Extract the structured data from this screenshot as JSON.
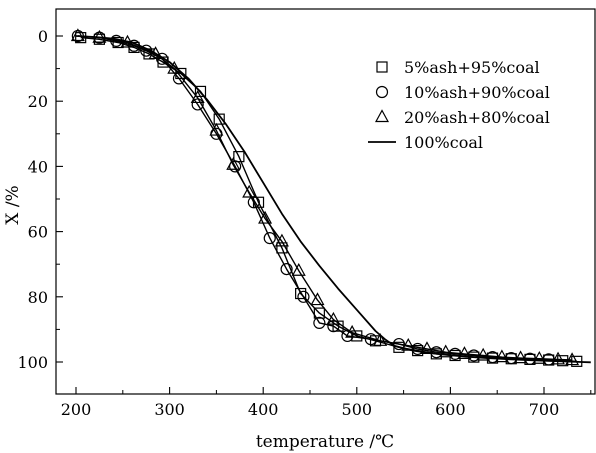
{
  "chart_data": {
    "type": "scatter",
    "xlabel": "temperature /℃",
    "ylabel": "X /%",
    "xlim": [
      190,
      765
    ],
    "ylim": [
      0,
      110
    ],
    "y_inverted": true,
    "x_ticks": [
      200,
      300,
      400,
      500,
      600,
      700
    ],
    "y_ticks": [
      0,
      20,
      40,
      60,
      80,
      100
    ],
    "legend_position": "top-right",
    "series": [
      {
        "name": "5%ash+95%coal",
        "marker": "square",
        "x": [
          205,
          225,
          245,
          262,
          278,
          293,
          312,
          333,
          353,
          374,
          395,
          420,
          440,
          460,
          480,
          500,
          520,
          545,
          565,
          585,
          605,
          625,
          645,
          665,
          685,
          705,
          720,
          735
        ],
        "y": [
          0.5,
          1,
          2,
          3.5,
          5.5,
          8,
          11.5,
          17,
          25.5,
          37,
          51,
          65,
          79,
          85,
          89,
          92,
          93.5,
          95.5,
          96.5,
          97.5,
          98,
          98.5,
          98.8,
          99,
          99.2,
          99.4,
          99.6,
          99.8
        ]
      },
      {
        "name": "10%ash+90%coal",
        "marker": "circle",
        "x": [
          202,
          225,
          243,
          262,
          275,
          292,
          310,
          330,
          350,
          370,
          390,
          407,
          425,
          443,
          460,
          475,
          490,
          515,
          545,
          565,
          585,
          605,
          625,
          645,
          665,
          685,
          705
        ],
        "y": [
          0,
          0.5,
          1.5,
          3,
          4.5,
          7,
          13,
          21,
          30,
          40,
          51,
          62,
          71.5,
          80,
          88,
          89,
          92,
          93,
          94.5,
          96,
          97,
          97.5,
          98,
          98.5,
          98.8,
          99,
          99.2
        ]
      },
      {
        "name": "20%ash+80%coal",
        "marker": "triangle",
        "x": [
          202,
          225,
          255,
          285,
          305,
          330,
          350,
          368,
          385,
          402,
          420,
          438,
          458,
          475,
          495,
          525,
          555,
          575,
          595,
          615,
          635,
          655,
          675,
          695,
          715,
          730
        ],
        "y": [
          0,
          0.5,
          2,
          5.5,
          10,
          19,
          29,
          39.5,
          48,
          56,
          63,
          72,
          81,
          87,
          91,
          93.5,
          95,
          96,
          97,
          97.5,
          98,
          98.5,
          98.8,
          99,
          99.2,
          99.4
        ]
      },
      {
        "name": "100%coal",
        "marker": "line",
        "x": [
          200,
          220,
          240,
          260,
          280,
          300,
          320,
          340,
          360,
          380,
          400,
          420,
          440,
          460,
          480,
          500,
          520,
          530,
          540,
          560,
          580,
          600,
          620,
          640,
          660,
          680,
          700,
          720,
          740,
          750
        ],
        "y": [
          0,
          0.3,
          0.8,
          2,
          4.5,
          8,
          13,
          19.5,
          27,
          35.5,
          45,
          54.5,
          63,
          70.5,
          77.5,
          84,
          90.5,
          93,
          95,
          96.5,
          97.3,
          97.9,
          98.4,
          98.8,
          99.1,
          99.4,
          99.6,
          99.8,
          100,
          100.1
        ]
      }
    ]
  }
}
